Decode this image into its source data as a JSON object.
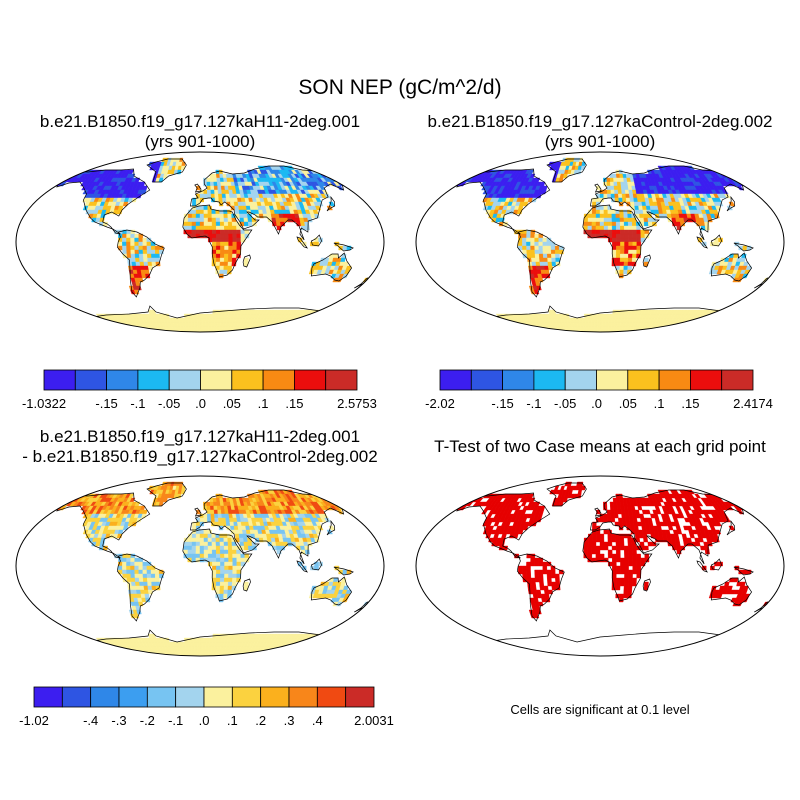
{
  "title": "SON NEP (gC/m^2/d)",
  "panels": [
    {
      "id": "case1",
      "title_lines": [
        "b.e21.B1850.f19_g17.127kaH11-2deg.001",
        "(yrs 901-1000)"
      ],
      "colorbar": {
        "colors": [
          "#3c1ef0",
          "#2e55e3",
          "#2f87e8",
          "#1cb9f2",
          "#a3d4ee",
          "#fbf19e",
          "#fbc11e",
          "#f88a13",
          "#eb0e0d",
          "#cb2b27"
        ],
        "labels": [
          "-1.0322",
          "-.15",
          "-.1",
          "-.05",
          ".0",
          ".05",
          ".1",
          ".15",
          "2.5753"
        ]
      }
    },
    {
      "id": "case2",
      "title_lines": [
        "b.e21.B1850.f19_g17.127kaControl-2deg.002",
        "(yrs 901-1000)"
      ],
      "colorbar": {
        "colors": [
          "#3c1ef0",
          "#2e55e3",
          "#2f87e8",
          "#1cb9f2",
          "#a3d4ee",
          "#fbf19e",
          "#fbc11e",
          "#f88a13",
          "#eb0e0d",
          "#cb2b27"
        ],
        "labels": [
          "-2.02",
          "-.15",
          "-.1",
          "-.05",
          ".0",
          ".05",
          ".1",
          ".15",
          "2.4174"
        ]
      }
    },
    {
      "id": "diff",
      "title_lines": [
        "b.e21.B1850.f19_g17.127kaH11-2deg.001",
        "- b.e21.B1850.f19_g17.127kaControl-2deg.002"
      ],
      "colorbar": {
        "colors": [
          "#3c1ef0",
          "#2e55e3",
          "#2f87e8",
          "#3c9ef0",
          "#77c4f2",
          "#a3d4ee",
          "#fbf19e",
          "#fbd23f",
          "#fbb01d",
          "#f8861a",
          "#f04a12",
          "#cb2b27"
        ],
        "labels": [
          "-1.02",
          "-.4",
          "-.3",
          "-.2",
          "-.1",
          ".0",
          ".1",
          ".2",
          ".3",
          ".4",
          "2.0031"
        ]
      }
    },
    {
      "id": "ttest",
      "title_lines": [
        "T-Test of two Case means at each grid point"
      ],
      "note": "Cells are significant at 0.1 level",
      "significant_color": "#e60000"
    }
  ],
  "chart_data": [
    {
      "type": "heatmap",
      "title": "b.e21.B1850.f19_g17.127kaH11-2deg.001 (yrs 901-1000)",
      "variable": "SON NEP (gC/m^2/d)",
      "levels": [
        -0.15,
        -0.1,
        -0.05,
        0.0,
        0.05,
        0.1,
        0.15
      ],
      "range": [
        -1.0322,
        2.5753
      ]
    },
    {
      "type": "heatmap",
      "title": "b.e21.B1850.f19_g17.127kaControl-2deg.002 (yrs 901-1000)",
      "variable": "SON NEP (gC/m^2/d)",
      "levels": [
        -0.15,
        -0.1,
        -0.05,
        0.0,
        0.05,
        0.1,
        0.15
      ],
      "range": [
        -2.02,
        2.4174
      ]
    },
    {
      "type": "heatmap",
      "title": "b.e21.B1850.f19_g17.127kaH11-2deg.001 - b.e21.B1850.f19_g17.127kaControl-2deg.002",
      "variable": "SON NEP (gC/m^2/d)",
      "levels": [
        -0.4,
        -0.3,
        -0.2,
        -0.1,
        0.0,
        0.1,
        0.2,
        0.3,
        0.4
      ],
      "range": [
        -1.02,
        2.0031
      ]
    },
    {
      "type": "heatmap",
      "title": "T-Test of two Case means at each grid point",
      "significance_level": 0.1
    }
  ]
}
